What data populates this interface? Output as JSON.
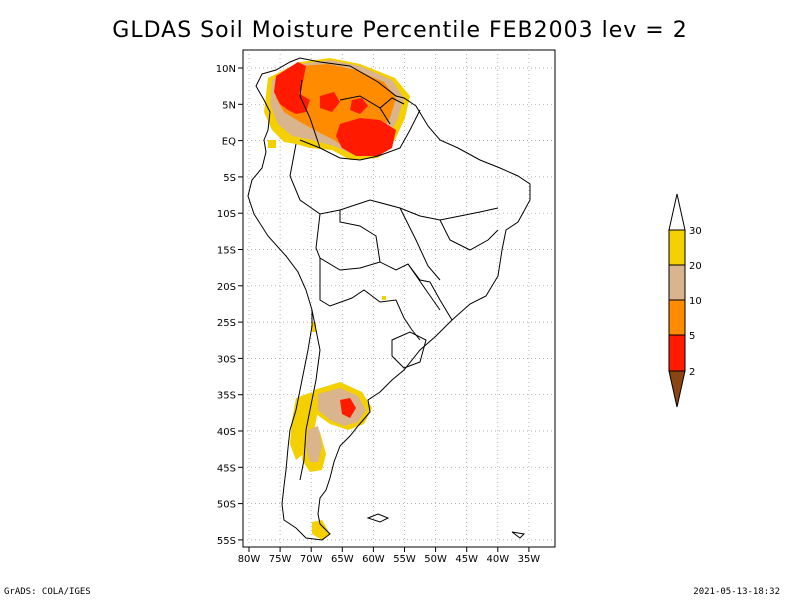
{
  "title": "GLDAS Soil Moisture Percentile FEB2003 lev = 2",
  "map": {
    "lon_labels": [
      "80W",
      "75W",
      "70W",
      "65W",
      "60W",
      "55W",
      "50W",
      "45W",
      "40W",
      "35W"
    ],
    "lat_labels": [
      "10N",
      "5N",
      "EQ",
      "5S",
      "10S",
      "15S",
      "20S",
      "25S",
      "30S",
      "35S",
      "40S",
      "45S",
      "50S",
      "55S"
    ]
  },
  "colorbar": {
    "labels": [
      "30",
      "20",
      "10",
      "5",
      "2"
    ],
    "colors": {
      "above30": "#ffffff",
      "20_30": "#f5d000",
      "10_20": "#d9b48c",
      "5_10": "#ff8c00",
      "2_5": "#ff1a00",
      "below2": "#8b4513"
    }
  },
  "footer": {
    "left": "GrADS: COLA/IGES",
    "right": "2021-05-13-18:32"
  }
}
